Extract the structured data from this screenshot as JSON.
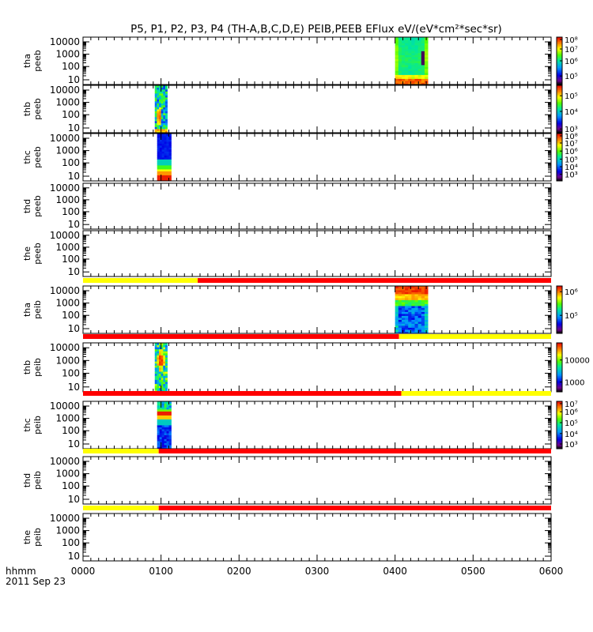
{
  "title": "P5, P1, P2, P3, P4 (TH-A,B,C,D,E) PEIB,PEEB EFlux eV/(eV*cm²*sec*sr)",
  "chart_data": {
    "type": "heatmap",
    "title": "P5, P1, P2, P3, P4 (TH-A,B,C,D,E) PEIB,PEEB EFlux eV/(eV*cm²*sec*sr)",
    "x_axis": {
      "label_top": "hhmm",
      "label_bottom": "2011 Sep 23",
      "tick_labels": [
        "0000",
        "0100",
        "0200",
        "0300",
        "0400",
        "0500",
        "0600"
      ],
      "range_hours": [
        0,
        6
      ]
    },
    "y_axis": {
      "scale": "log",
      "tick_labels": [
        "10",
        "100",
        "1000",
        "10000"
      ]
    },
    "panels": [
      {
        "name_line1": "tha",
        "name_line2": "peeb",
        "data_spans": [
          [
            4.0,
            4.42
          ]
        ],
        "pattern": "tha-peeb",
        "colorbar_ticks": [
          {
            "label": "10⁸",
            "p": 0.05
          },
          {
            "label": "10⁷",
            "p": 0.25
          },
          {
            "label": "10⁶",
            "p": 0.5
          },
          {
            "label": "10⁵",
            "p": 0.82
          }
        ]
      },
      {
        "name_line1": "thb",
        "name_line2": "peeb",
        "data_spans": [
          [
            0.92,
            1.08
          ]
        ],
        "pattern": "thb-peeb",
        "colorbar_ticks": [
          {
            "label": "10⁵",
            "p": 0.22
          },
          {
            "label": "10⁴",
            "p": 0.55
          },
          {
            "label": "10³",
            "p": 0.92
          }
        ]
      },
      {
        "name_line1": "thc",
        "name_line2": "peeb",
        "data_spans": [
          [
            0.95,
            1.13
          ]
        ],
        "pattern": "thc-peeb",
        "colorbar_ticks": [
          {
            "label": "10⁸",
            "p": 0.05
          },
          {
            "label": "10⁷",
            "p": 0.2
          },
          {
            "label": "10⁶",
            "p": 0.37
          },
          {
            "label": "10⁵",
            "p": 0.54
          },
          {
            "label": "10⁴",
            "p": 0.7
          },
          {
            "label": "10³",
            "p": 0.86
          }
        ]
      },
      {
        "name_line1": "thd",
        "name_line2": "peeb",
        "data_spans": [],
        "colorbar_ticks": []
      },
      {
        "name_line1": "the",
        "name_line2": "peeb",
        "data_spans": [],
        "colorbar_ticks": [],
        "mode_bar": {
          "yellow_until": 1.47
        }
      },
      {
        "name_line1": "tha",
        "name_line2": "peib",
        "data_spans": [
          [
            4.0,
            4.42
          ]
        ],
        "pattern": "tha-peib",
        "colorbar_ticks": [
          {
            "label": "10⁶",
            "p": 0.12
          },
          {
            "label": "10⁵",
            "p": 0.62
          }
        ],
        "mode_bar": {
          "red_until": 4.05
        }
      },
      {
        "name_line1": "thb",
        "name_line2": "peib",
        "data_spans": [
          [
            0.92,
            1.08
          ]
        ],
        "pattern": "thb-peib",
        "colorbar_ticks": [
          {
            "label": "10000",
            "p": 0.35
          },
          {
            "label": "1000",
            "p": 0.8
          }
        ],
        "mode_bar": {
          "red_until": 4.08
        }
      },
      {
        "name_line1": "thc",
        "name_line2": "peib",
        "data_spans": [
          [
            0.95,
            1.13
          ]
        ],
        "pattern": "thc-peib",
        "colorbar_ticks": [
          {
            "label": "10⁷",
            "p": 0.05
          },
          {
            "label": "10⁶",
            "p": 0.22
          },
          {
            "label": "10⁵",
            "p": 0.45
          },
          {
            "label": "10⁴",
            "p": 0.68
          },
          {
            "label": "10³",
            "p": 0.9
          }
        ],
        "mode_bar": {
          "yellow_until": 0.97
        }
      },
      {
        "name_line1": "thd",
        "name_line2": "peib",
        "data_spans": [],
        "colorbar_ticks": [],
        "mode_bar": {
          "yellow_until": 0.97
        }
      },
      {
        "name_line1": "the",
        "name_line2": "peib",
        "data_spans": [],
        "colorbar_ticks": []
      }
    ]
  },
  "colors": {
    "mode_bar_yellow": "#ffff00",
    "mode_bar_red": "#ff0000",
    "axis": "#000000"
  }
}
